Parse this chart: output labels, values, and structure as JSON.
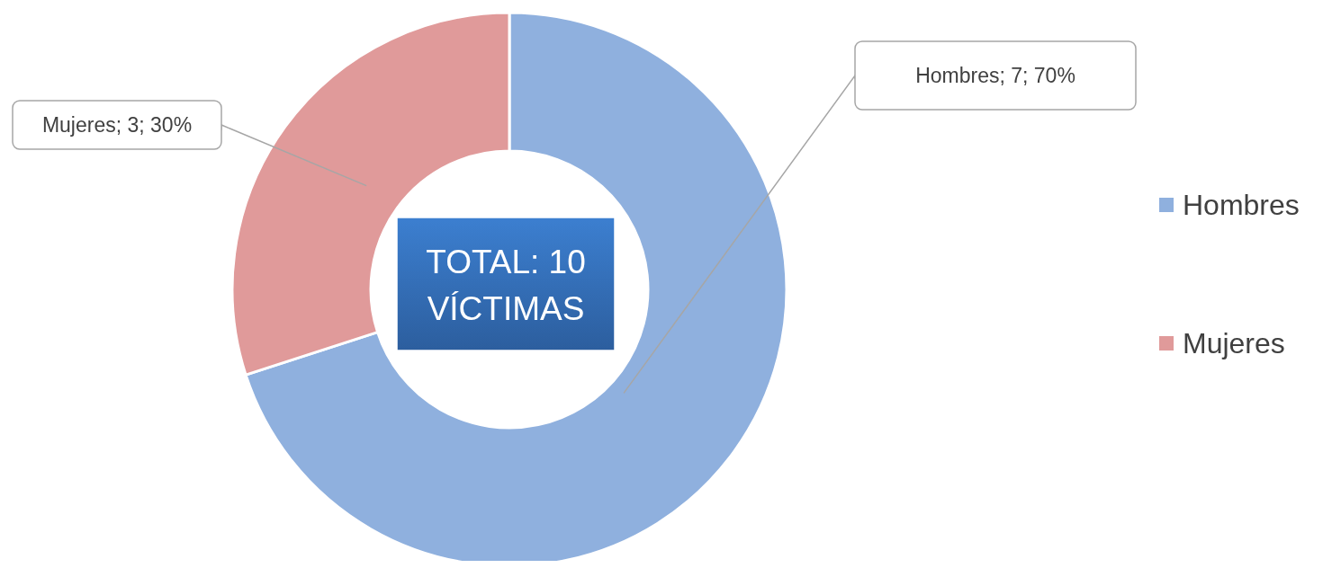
{
  "chart_data": {
    "type": "donut",
    "categories": [
      "Hombres",
      "Mujeres"
    ],
    "values": [
      7,
      3
    ],
    "colors": [
      "#8fb0de",
      "#e09a9a"
    ],
    "value_labels": [
      "Hombres; 7; 70%",
      "Mujeres; 3; 30%"
    ],
    "annotations": [
      "TOTAL: 10 VÍCTIMAS"
    ],
    "legend": "right"
  }
}
